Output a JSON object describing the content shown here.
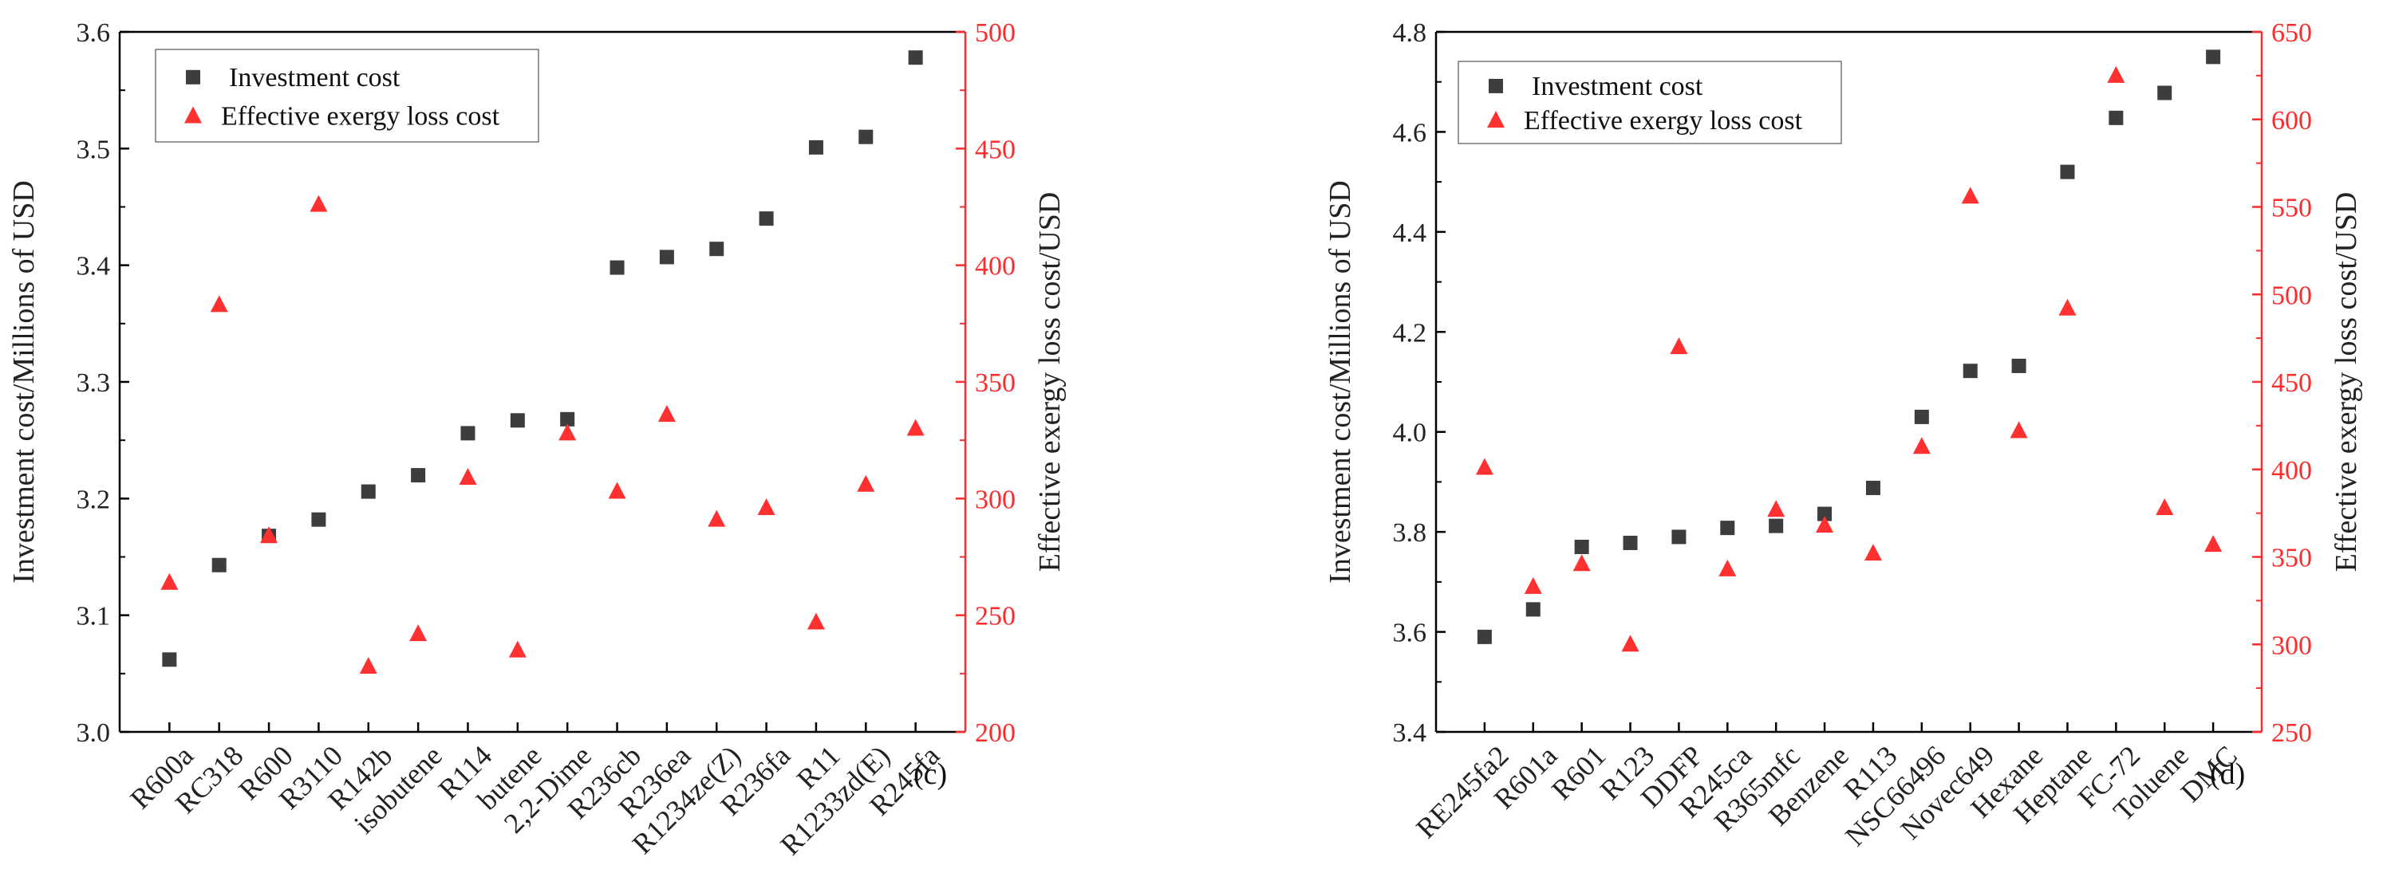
{
  "colors": {
    "investment": "#3d3d3d",
    "exergy": "#ff3030",
    "left_axis": "#000000",
    "right_axis": "#ff2a2a"
  },
  "chart_data": [
    {
      "type": "scatter",
      "panel_label": "(c)",
      "categories": [
        "R600a",
        "RC318",
        "R600",
        "R3110",
        "R142b",
        "isobutene",
        "R114",
        "butene",
        "2,2-Dime",
        "R236cb",
        "R236ea",
        "R1234ze(Z)",
        "R236fa",
        "R11",
        "R1233zd(E)",
        "R245fa"
      ],
      "ylabel": "Investment cost/Millions of USD",
      "ylabel_right": "Effective exergy loss cost/USD",
      "ylim": [
        3.0,
        3.6
      ],
      "ylim_right": [
        200,
        500
      ],
      "yticks": [
        "3.0",
        "3.1",
        "3.2",
        "3.3",
        "3.4",
        "3.5",
        "3.6"
      ],
      "yticks_right": [
        "200",
        "250",
        "300",
        "350",
        "400",
        "450",
        "500"
      ],
      "legend": [
        "Investment cost",
        "Effective exergy loss cost"
      ],
      "legend_position": "top-left",
      "series": [
        {
          "name": "Investment cost",
          "axis": "left",
          "marker": "square",
          "values": [
            3.062,
            3.143,
            3.168,
            3.182,
            3.206,
            3.22,
            3.256,
            3.267,
            3.268,
            3.398,
            3.407,
            3.414,
            3.44,
            3.501,
            3.51,
            3.578
          ]
        },
        {
          "name": "Effective exergy loss cost",
          "axis": "right",
          "marker": "triangle",
          "values": [
            264,
            383,
            284,
            426,
            228,
            242,
            309,
            235,
            328,
            303,
            336,
            291,
            296,
            247,
            306,
            330
          ]
        }
      ]
    },
    {
      "type": "scatter",
      "panel_label": "(d)",
      "categories": [
        "RE245fa2",
        "R601a",
        "R601",
        "R123",
        "DDFP",
        "R245ca",
        "R365mfc",
        "Benzene",
        "R113",
        "NSC66496",
        "Novec649",
        "Hexane",
        "Heptane",
        "FC-72",
        "Toluene",
        "DMC"
      ],
      "ylabel": "Investment cost/Millions of USD",
      "ylabel_right": "Effective exergy loss cost/USD",
      "ylim": [
        3.4,
        4.8
      ],
      "ylim_right": [
        250,
        650
      ],
      "yticks": [
        "3.4",
        "3.6",
        "3.8",
        "4.0",
        "4.2",
        "4.4",
        "4.6",
        "4.8"
      ],
      "yticks_right": [
        "250",
        "300",
        "350",
        "400",
        "450",
        "500",
        "550",
        "600",
        "650"
      ],
      "legend": [
        "Investment cost",
        "Effective exergy loss cost"
      ],
      "legend_position": "top-left",
      "series": [
        {
          "name": "Investment cost",
          "axis": "left",
          "marker": "square",
          "values": [
            3.59,
            3.645,
            3.77,
            3.778,
            3.79,
            3.808,
            3.812,
            3.836,
            3.888,
            4.03,
            4.122,
            4.132,
            4.52,
            4.628,
            4.678,
            4.75
          ]
        },
        {
          "name": "Effective exergy loss cost",
          "axis": "right",
          "marker": "triangle",
          "values": [
            401,
            333,
            346,
            300,
            470,
            343,
            377,
            368,
            352,
            413,
            556,
            422,
            492,
            625,
            378,
            357
          ]
        }
      ]
    }
  ]
}
